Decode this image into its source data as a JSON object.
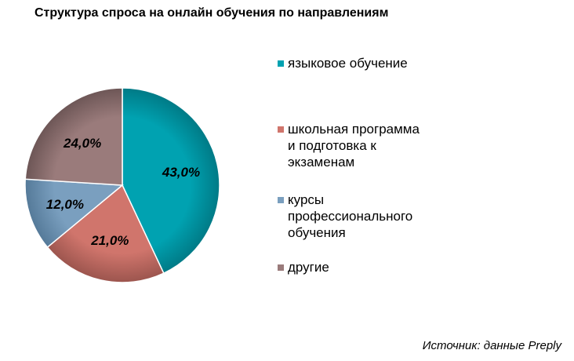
{
  "chart_data": {
    "type": "pie",
    "title": "Структура спроса на онлайн обучения по направлениям",
    "categories": [
      "языковое обучение",
      "школьная программа и подготовка к экзаменам",
      "курсы профессионального обучения",
      "другие"
    ],
    "legend_lines": [
      "языковое обучение",
      "школьная программа\nи подготовка к\nэкзаменам",
      "курсы\nпрофессионального\nобучения",
      "другие"
    ],
    "values": [
      43,
      21,
      12,
      24
    ],
    "value_labels": [
      "43,0%",
      "21,0%",
      "12,0%",
      "24,0%"
    ],
    "colors": [
      "#00a2b1",
      "#d0756c",
      "#7a9fbf",
      "#9a7b7b"
    ],
    "edge_colors": [
      "#007a86",
      "#9c554e",
      "#557a99",
      "#6d5656"
    ],
    "legend_position": "right"
  },
  "source": "Источник: данные Preply"
}
